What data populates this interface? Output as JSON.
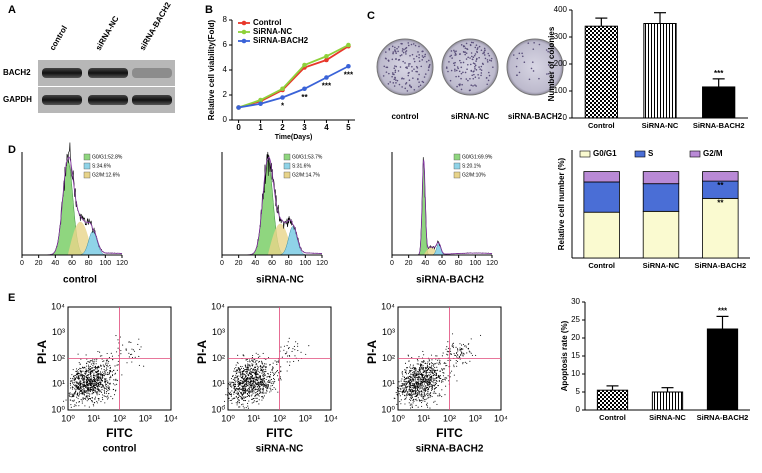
{
  "panel_letters": [
    "A",
    "B",
    "C",
    "D",
    "E"
  ],
  "western_blot": {
    "lanes": [
      "control",
      "siRNA-NC",
      "siRNA-BACH2"
    ],
    "proteins": [
      "BACH2",
      "GAPDH"
    ]
  },
  "colony_assay": {
    "labels": [
      "control",
      "siRNA-NC",
      "siRNA-BACH2"
    ]
  },
  "cell_cycle": {
    "xticks": [
      0,
      20,
      40,
      60,
      80,
      100,
      120
    ],
    "samples": [
      {
        "name": "control",
        "phases": [
          "G0/G1:52.8%",
          "S:34.6%",
          "G2/M:12.6%"
        ]
      },
      {
        "name": "siRNA-NC",
        "phases": [
          "G0/G1:53.7%",
          "S:31.6%",
          "G2/M:14.7%"
        ]
      },
      {
        "name": "siRNA-BACH2",
        "phases": [
          "G0/G1:69.9%",
          "S:20.1%",
          "G2/M:10%"
        ]
      }
    ]
  },
  "apoptosis_flow": {
    "x_label": "FITC",
    "y_label": "PI-A",
    "ticks": [
      "10⁰",
      "10¹",
      "10²",
      "10³",
      "10⁴"
    ],
    "samples": [
      "control",
      "siRNA-NC",
      "siRNA-BACH2"
    ]
  },
  "chart_data": [
    {
      "type": "line",
      "x_label": "Time(Days)",
      "y_label": "Relative cell viability(Fold)",
      "x": [
        0,
        1,
        2,
        3,
        4,
        5
      ],
      "xlim": [
        -0.3,
        5.3
      ],
      "xticks": [
        0,
        1,
        2,
        3,
        4,
        5
      ],
      "ylim": [
        0,
        8
      ],
      "yticks": [
        0,
        2,
        4,
        6,
        8
      ],
      "legend": "upper-left",
      "series": [
        {
          "name": "Control",
          "color": "#e8382b",
          "values": [
            1,
            1.5,
            2.4,
            4.2,
            4.8,
            5.9
          ]
        },
        {
          "name": "SiRNA-NC",
          "color": "#8ed13a",
          "values": [
            1,
            1.6,
            2.5,
            4.4,
            5.1,
            6.0
          ]
        },
        {
          "name": "SiRNA-BACH2",
          "color": "#3a63d8",
          "values": [
            1,
            1.3,
            1.8,
            2.5,
            3.4,
            4.3
          ],
          "annotations": [
            null,
            null,
            "*",
            "**",
            "***",
            "***"
          ]
        }
      ]
    },
    {
      "type": "bar",
      "y_label": "Number of colonies",
      "categories": [
        "Control",
        "SiRNA-NC",
        "SiRNA-BACH2"
      ],
      "values": [
        340,
        350,
        115
      ],
      "errors": [
        30,
        40,
        30
      ],
      "patterns": [
        "checker",
        "stripes",
        "solid"
      ],
      "annotations": [
        null,
        null,
        "***"
      ],
      "ylim": [
        0,
        400
      ],
      "yticks": [
        0,
        100,
        200,
        300,
        400
      ]
    },
    {
      "type": "stacked-bar",
      "y_label": "Relative cell number (%)",
      "categories": [
        "Control",
        "SiRNA-NC",
        "SiRNA-BACH2"
      ],
      "ylim": [
        0,
        125
      ],
      "legend": "top",
      "series": [
        {
          "name": "G0/G1",
          "color": "#fafad0",
          "values": [
            53,
            54,
            69
          ],
          "annotations": [
            null,
            null,
            "**"
          ]
        },
        {
          "name": "S",
          "color": "#4a6ed6",
          "values": [
            35,
            32,
            20
          ],
          "annotations": [
            null,
            null,
            "**"
          ]
        },
        {
          "name": "G2/M",
          "color": "#b98ad6",
          "values": [
            12,
            14,
            11
          ]
        }
      ]
    },
    {
      "type": "bar",
      "y_label": "Apoptosis rate (%)",
      "categories": [
        "Control",
        "SiRNA-NC",
        "SiRNA-BACH2"
      ],
      "values": [
        5.5,
        5,
        22.5
      ],
      "errors": [
        1.2,
        1.2,
        3.5
      ],
      "patterns": [
        "checker",
        "stripes",
        "solid"
      ],
      "annotations": [
        null,
        null,
        "***"
      ],
      "ylim": [
        0,
        30
      ],
      "yticks": [
        0,
        5,
        10,
        15,
        20,
        25,
        30
      ]
    }
  ]
}
